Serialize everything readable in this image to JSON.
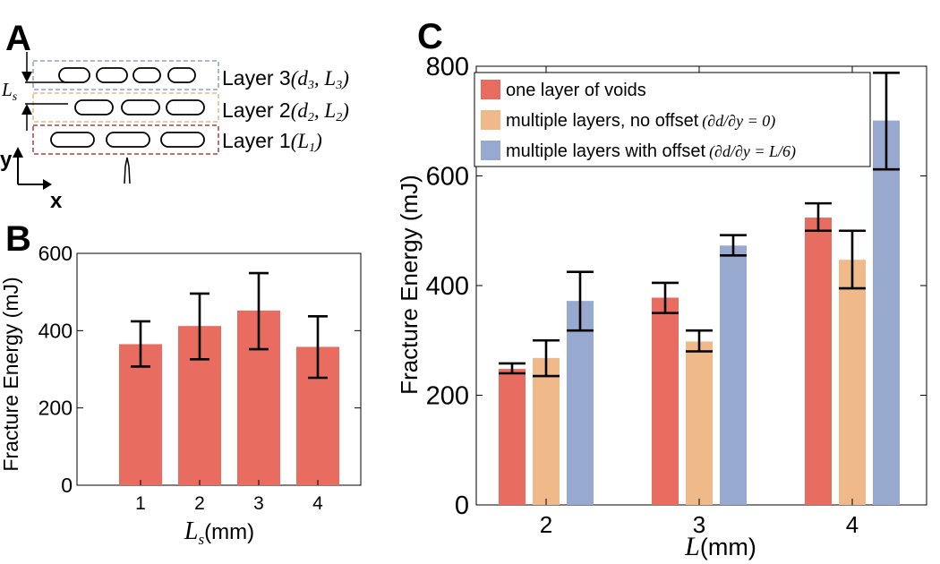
{
  "panels": {
    "a": "A",
    "b": "B",
    "c": "C"
  },
  "schematic": {
    "layers": [
      {
        "label": "Layer 3",
        "params": "(d3, L3)",
        "color": "#8ea1c7"
      },
      {
        "label": "Layer 2",
        "params": "(d2, L2)",
        "color": "#e8b683"
      },
      {
        "label": "Layer 1",
        "params": "(L1)",
        "color": "#a94040"
      }
    ],
    "ls_label": "Ls",
    "axis_x": "x",
    "axis_y": "y"
  },
  "colors": {
    "red": "#e86c5f",
    "orange": "#efb98a",
    "blue": "#98a9d0"
  },
  "chart_data": [
    {
      "id": "B",
      "type": "bar",
      "title": "",
      "xlabel_var": "Ls",
      "xlabel_unit": "(mm)",
      "ylabel": "Fracture Energy (mJ)",
      "categories": [
        "1",
        "2",
        "3",
        "4"
      ],
      "values": [
        365,
        412,
        452,
        358
      ],
      "err_low": [
        307,
        326,
        352,
        278
      ],
      "err_high": [
        424,
        496,
        549,
        437
      ],
      "ylim": [
        0,
        600
      ],
      "yticks": [
        "0",
        "200",
        "400",
        "600"
      ],
      "grid": false
    },
    {
      "id": "C",
      "type": "bar",
      "title": "",
      "xlabel_var": "L",
      "xlabel_unit": "(mm)",
      "ylabel": "Fracture Energy (mJ)",
      "categories": [
        "2",
        "3",
        "4"
      ],
      "ylim": [
        0,
        800
      ],
      "yticks": [
        "0",
        "200",
        "400",
        "600",
        "800"
      ],
      "grid": false,
      "legend_position": "top",
      "series": [
        {
          "name": "one layer of voids",
          "suffix": "",
          "values": [
            248,
            378,
            524
          ],
          "err_low": [
            240,
            350,
            500
          ],
          "err_high": [
            258,
            405,
            550
          ]
        },
        {
          "name": "multiple layers, no offset",
          "suffix": "(∂d/∂y = 0)",
          "values": [
            268,
            298,
            447
          ],
          "err_low": [
            235,
            280,
            395
          ],
          "err_high": [
            300,
            318,
            500
          ]
        },
        {
          "name": "multiple layers with offset",
          "suffix": "(∂d/∂y = L/6)",
          "values": [
            372,
            473,
            701
          ],
          "err_low": [
            318,
            455,
            612
          ],
          "err_high": [
            425,
            492,
            788
          ]
        }
      ]
    }
  ]
}
